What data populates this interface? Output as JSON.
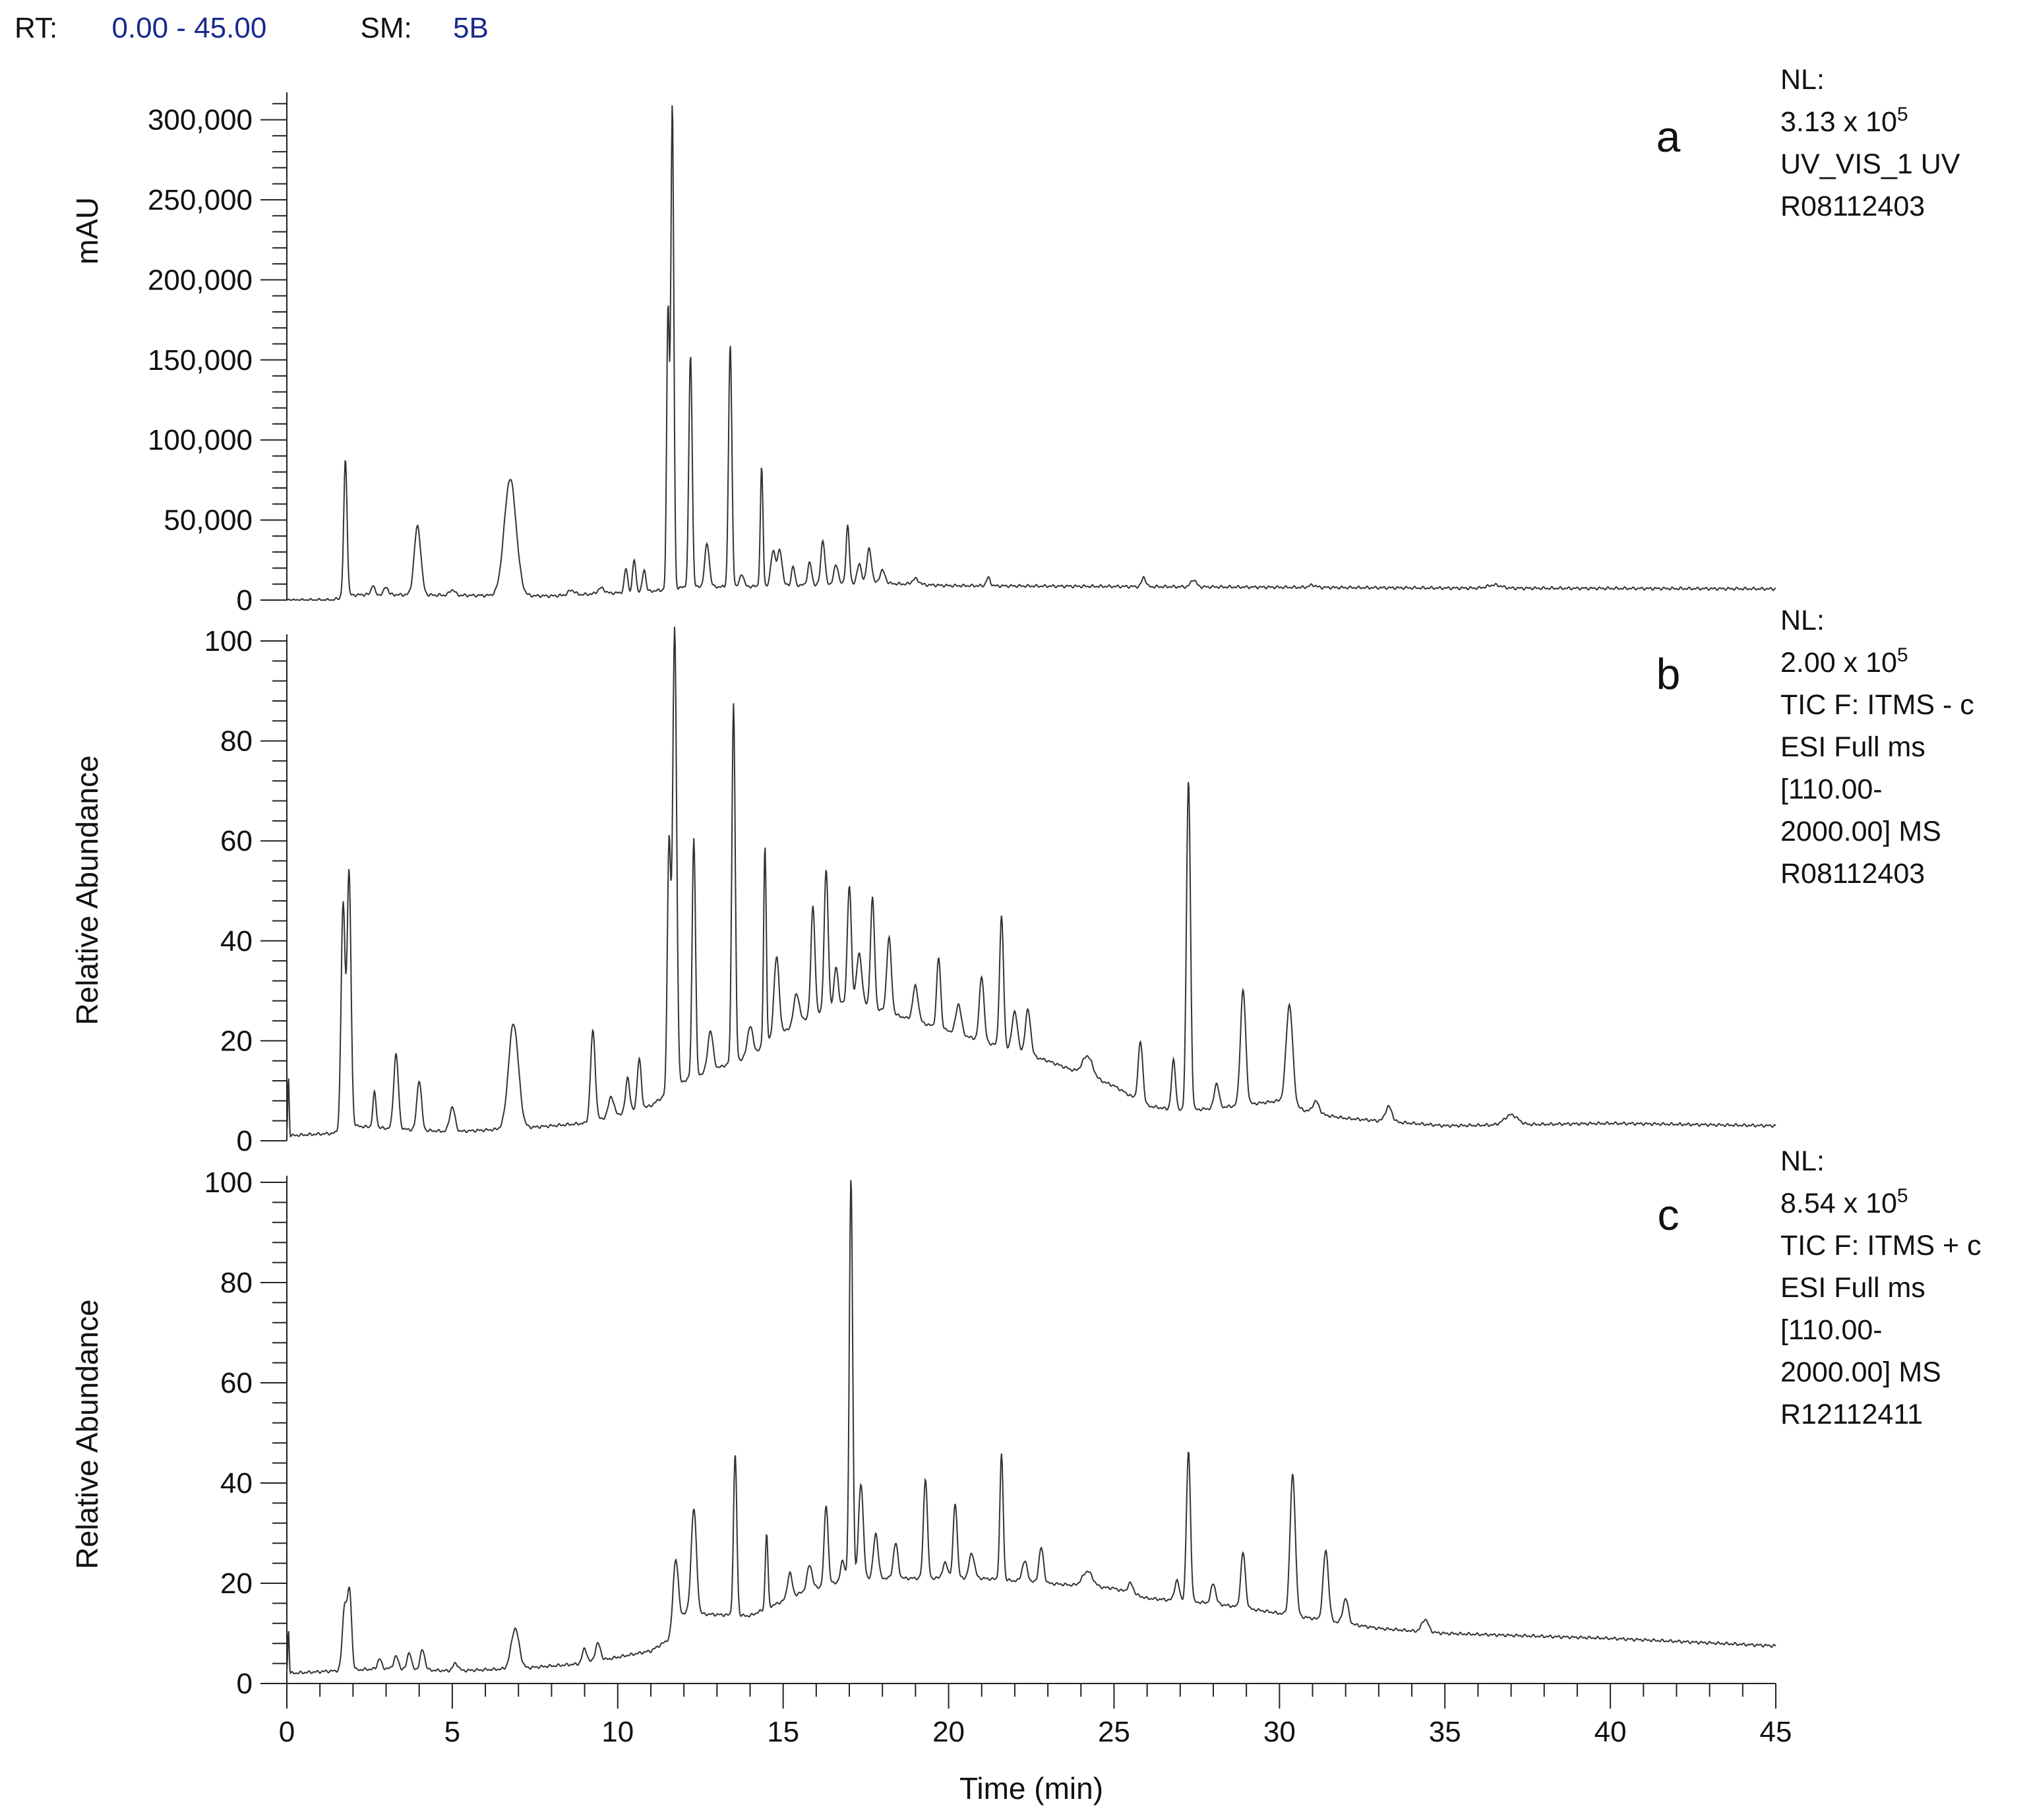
{
  "header": {
    "rt_key": "RT:",
    "rt_value": "0.00 - 45.00",
    "sm_key": "SM:",
    "sm_value": "5B"
  },
  "chart_data": [
    {
      "type": "line",
      "panel": "a",
      "ylabel": "mAU",
      "ylim": [
        0,
        313000
      ],
      "yticks": [
        0,
        50000,
        100000,
        150000,
        200000,
        250000,
        300000
      ],
      "ytick_labels": [
        "0",
        "50,000",
        "100,000",
        "150,000",
        "200,000",
        "250,000",
        "300,000"
      ],
      "info": [
        "NL:",
        "3.13 x 10",
        "UV_VIS_1  UV",
        "R08112403"
      ],
      "nl_exponent": "5",
      "baseline": [
        [
          0,
          0
        ],
        [
          1.4,
          0
        ],
        [
          1.8,
          3000
        ],
        [
          2.5,
          3500
        ],
        [
          5,
          3000
        ],
        [
          8,
          2600
        ],
        [
          10,
          4500
        ],
        [
          11,
          5500
        ],
        [
          12,
          8000
        ],
        [
          14,
          8500
        ],
        [
          16,
          9500
        ],
        [
          18,
          10500
        ],
        [
          20,
          9000
        ],
        [
          25,
          8500
        ],
        [
          30,
          8000
        ],
        [
          35,
          7500
        ],
        [
          40,
          7300
        ],
        [
          45,
          7000
        ]
      ],
      "peaks": [
        [
          1.77,
          85000,
          0.05
        ],
        [
          2.6,
          6000,
          0.05
        ],
        [
          3.0,
          5000,
          0.06
        ],
        [
          3.95,
          43000,
          0.1
        ],
        [
          5.0,
          3500,
          0.08
        ],
        [
          6.75,
          73000,
          0.18
        ],
        [
          8.6,
          3000,
          0.1
        ],
        [
          9.5,
          3500,
          0.1
        ],
        [
          10.25,
          15000,
          0.05
        ],
        [
          10.5,
          20000,
          0.05
        ],
        [
          10.8,
          14000,
          0.05
        ],
        [
          11.52,
          175000,
          0.04
        ],
        [
          11.65,
          303000,
          0.045
        ],
        [
          12.2,
          145000,
          0.05
        ],
        [
          12.7,
          27000,
          0.07
        ],
        [
          13.4,
          151000,
          0.05
        ],
        [
          13.75,
          8000,
          0.06
        ],
        [
          14.35,
          74000,
          0.04
        ],
        [
          14.7,
          22000,
          0.07
        ],
        [
          14.9,
          22000,
          0.07
        ],
        [
          15.3,
          12000,
          0.05
        ],
        [
          15.8,
          14000,
          0.06
        ],
        [
          16.2,
          28000,
          0.06
        ],
        [
          16.6,
          12000,
          0.07
        ],
        [
          16.95,
          37000,
          0.05
        ],
        [
          17.3,
          12000,
          0.07
        ],
        [
          17.6,
          22000,
          0.07
        ],
        [
          18.0,
          8000,
          0.08
        ],
        [
          19.0,
          3500,
          0.1
        ],
        [
          21.2,
          5000,
          0.06
        ],
        [
          25.9,
          6000,
          0.06
        ],
        [
          27.4,
          4500,
          0.08
        ],
        [
          31.0,
          1500,
          0.1
        ],
        [
          36.5,
          2000,
          0.2
        ]
      ]
    },
    {
      "type": "line",
      "panel": "b",
      "ylabel": "Relative Abundance",
      "ylim": [
        0,
        100
      ],
      "yticks": [
        0,
        20,
        40,
        60,
        80,
        100
      ],
      "ytick_labels": [
        "0",
        "20",
        "40",
        "60",
        "80",
        "100"
      ],
      "info": [
        "NL:",
        "2.00 x 10",
        "TIC F: ITMS - c",
        "ESI Full ms",
        "[110.00-",
        "2000.00]  MS",
        "R08112403"
      ],
      "nl_exponent": "5",
      "baseline": [
        [
          0,
          1
        ],
        [
          1.4,
          1.5
        ],
        [
          2.0,
          3
        ],
        [
          3,
          2.5
        ],
        [
          5,
          1.8
        ],
        [
          7,
          2.5
        ],
        [
          9,
          3.5
        ],
        [
          11,
          7
        ],
        [
          12,
          12
        ],
        [
          14,
          17
        ],
        [
          15.5,
          24
        ],
        [
          17,
          28
        ],
        [
          19,
          24
        ],
        [
          21,
          20
        ],
        [
          23,
          16
        ],
        [
          25,
          11
        ],
        [
          26,
          7
        ],
        [
          27,
          6
        ],
        [
          28,
          6.5
        ],
        [
          30,
          8
        ],
        [
          31,
          5.5
        ],
        [
          32,
          4.5
        ],
        [
          35,
          3
        ],
        [
          40,
          3.5
        ],
        [
          45,
          3
        ]
      ],
      "peaks": [
        [
          0.05,
          12,
          0.02
        ],
        [
          1.7,
          45,
          0.06
        ],
        [
          1.88,
          51,
          0.06
        ],
        [
          2.65,
          7,
          0.05
        ],
        [
          3.3,
          15,
          0.07
        ],
        [
          4.0,
          10,
          0.07
        ],
        [
          5.0,
          5,
          0.08
        ],
        [
          6.85,
          21,
          0.15
        ],
        [
          9.25,
          18,
          0.07
        ],
        [
          9.8,
          4,
          0.08
        ],
        [
          10.3,
          7,
          0.06
        ],
        [
          10.65,
          10,
          0.06
        ],
        [
          11.55,
          50,
          0.05
        ],
        [
          11.72,
          92,
          0.06
        ],
        [
          12.3,
          48,
          0.05
        ],
        [
          12.8,
          8,
          0.08
        ],
        [
          13.5,
          72,
          0.05
        ],
        [
          14.0,
          6,
          0.08
        ],
        [
          14.45,
          40,
          0.04
        ],
        [
          14.8,
          16,
          0.08
        ],
        [
          15.4,
          6,
          0.08
        ],
        [
          15.9,
          22,
          0.06
        ],
        [
          16.3,
          28,
          0.06
        ],
        [
          16.6,
          8,
          0.06
        ],
        [
          17.0,
          23,
          0.06
        ],
        [
          17.3,
          10,
          0.08
        ],
        [
          17.7,
          22,
          0.06
        ],
        [
          18.2,
          15,
          0.07
        ],
        [
          19.0,
          7,
          0.08
        ],
        [
          19.7,
          14,
          0.06
        ],
        [
          20.3,
          6,
          0.08
        ],
        [
          21.0,
          13,
          0.07
        ],
        [
          21.6,
          26,
          0.06
        ],
        [
          22.0,
          8,
          0.08
        ],
        [
          22.4,
          9,
          0.08
        ],
        [
          24.2,
          4,
          0.15
        ],
        [
          25.8,
          12,
          0.07
        ],
        [
          26.8,
          10,
          0.06
        ],
        [
          27.25,
          66,
          0.06
        ],
        [
          28.1,
          5,
          0.07
        ],
        [
          28.9,
          23,
          0.08
        ],
        [
          30.3,
          20,
          0.1
        ],
        [
          31.1,
          2.5,
          0.1
        ],
        [
          33.3,
          3,
          0.1
        ],
        [
          37.0,
          2,
          0.2
        ]
      ]
    },
    {
      "type": "line",
      "panel": "c",
      "ylabel": "Relative Abundance",
      "ylim": [
        0,
        100
      ],
      "yticks": [
        0,
        20,
        40,
        60,
        80,
        100
      ],
      "ytick_labels": [
        "0",
        "20",
        "40",
        "60",
        "80",
        "100"
      ],
      "xlabel": "Time (min)",
      "xlim": [
        0,
        45
      ],
      "xticks": [
        0,
        5,
        10,
        15,
        20,
        25,
        30,
        35,
        40,
        45
      ],
      "xtick_labels": [
        "0",
        "5",
        "10",
        "15",
        "20",
        "25",
        "30",
        "35",
        "40",
        "45"
      ],
      "info": [
        "NL:",
        "8.54 x 10",
        "TIC F: ITMS + c",
        "ESI Full ms",
        "[110.00-",
        "2000.00]  MS",
        "R12112411"
      ],
      "nl_exponent": "5",
      "baseline": [
        [
          0,
          2
        ],
        [
          1.4,
          2.5
        ],
        [
          3,
          3
        ],
        [
          5,
          2.5
        ],
        [
          7,
          3
        ],
        [
          9,
          4
        ],
        [
          11,
          6.5
        ],
        [
          11.6,
          9
        ],
        [
          12,
          14
        ],
        [
          14,
          13.5
        ],
        [
          15.5,
          18
        ],
        [
          17,
          21
        ],
        [
          19,
          21
        ],
        [
          21,
          21
        ],
        [
          23,
          20
        ],
        [
          25,
          19
        ],
        [
          26,
          17
        ],
        [
          28,
          16
        ],
        [
          30,
          14
        ],
        [
          32,
          12
        ],
        [
          33,
          11
        ],
        [
          35,
          10
        ],
        [
          40,
          9
        ],
        [
          45,
          7.5
        ]
      ],
      "peaks": [
        [
          0.05,
          9,
          0.02
        ],
        [
          1.75,
          13,
          0.07
        ],
        [
          1.9,
          15,
          0.06
        ],
        [
          2.8,
          2,
          0.06
        ],
        [
          3.3,
          2.5,
          0.07
        ],
        [
          3.7,
          3.5,
          0.06
        ],
        [
          4.1,
          4,
          0.07
        ],
        [
          5.1,
          1.5,
          0.08
        ],
        [
          6.9,
          8,
          0.12
        ],
        [
          9.0,
          3,
          0.07
        ],
        [
          9.4,
          3.5,
          0.08
        ],
        [
          11.75,
          14,
          0.08
        ],
        [
          12.3,
          21,
          0.08
        ],
        [
          13.55,
          32,
          0.05
        ],
        [
          14.5,
          15,
          0.04
        ],
        [
          15.2,
          5,
          0.07
        ],
        [
          15.8,
          5,
          0.08
        ],
        [
          16.3,
          16,
          0.06
        ],
        [
          16.8,
          4,
          0.06
        ],
        [
          17.05,
          80,
          0.05
        ],
        [
          17.35,
          19,
          0.07
        ],
        [
          17.8,
          9,
          0.07
        ],
        [
          18.4,
          7,
          0.07
        ],
        [
          19.3,
          20,
          0.06
        ],
        [
          19.9,
          3,
          0.08
        ],
        [
          20.2,
          15,
          0.06
        ],
        [
          20.7,
          5,
          0.08
        ],
        [
          21.6,
          25,
          0.05
        ],
        [
          22.3,
          4,
          0.08
        ],
        [
          22.8,
          7,
          0.07
        ],
        [
          24.2,
          3,
          0.15
        ],
        [
          25.5,
          2,
          0.08
        ],
        [
          26.9,
          4,
          0.07
        ],
        [
          27.25,
          30,
          0.06
        ],
        [
          28.0,
          4,
          0.07
        ],
        [
          28.9,
          11,
          0.07
        ],
        [
          30.4,
          28,
          0.08
        ],
        [
          31.4,
          14,
          0.08
        ],
        [
          32.0,
          5,
          0.08
        ],
        [
          34.4,
          2.5,
          0.1
        ]
      ]
    }
  ]
}
